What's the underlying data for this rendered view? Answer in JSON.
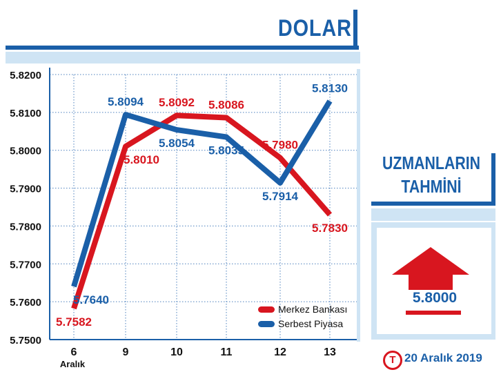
{
  "header": {
    "title": "DOLAR"
  },
  "forecast": {
    "heading_line1": "UZMANLARIN",
    "heading_line2": "TAHMİNİ",
    "value": "5.8000",
    "direction": "up"
  },
  "footer": {
    "date": "20 Aralık 2019",
    "logo_letter": "T"
  },
  "colors": {
    "accent_blue": "#1a5fa8",
    "accent_red": "#d8161f",
    "light_blue": "#cfe4f4"
  },
  "chart_data": {
    "type": "line",
    "title": "DOLAR",
    "categories": [
      "6",
      "9",
      "10",
      "11",
      "12",
      "13"
    ],
    "category_sublabels": [
      "Aralık",
      "",
      "",
      "",
      "",
      ""
    ],
    "yticks": [
      "5.7500",
      "5.7600",
      "5.7700",
      "5.7800",
      "5.7900",
      "5.8000",
      "5.8100",
      "5.8200"
    ],
    "ylim": [
      5.75,
      5.82
    ],
    "grid": true,
    "legend_position": "bottom-right",
    "series": [
      {
        "name": "Merkez Bankası",
        "color": "#d8161f",
        "values": [
          5.7582,
          5.801,
          5.8092,
          5.8086,
          5.798,
          5.783
        ],
        "labels": [
          "5.7582",
          "5.8010",
          "5.8092",
          "5.8086",
          "5.7980",
          "5.7830"
        ]
      },
      {
        "name": "Serbest Piyasa",
        "color": "#1a5fa8",
        "values": [
          5.764,
          5.8094,
          5.8054,
          5.8035,
          5.7914,
          5.813
        ],
        "labels": [
          "5.7640",
          "5.8094",
          "5.8054",
          "5.8035",
          "5.7914",
          "5.8130"
        ]
      }
    ]
  }
}
